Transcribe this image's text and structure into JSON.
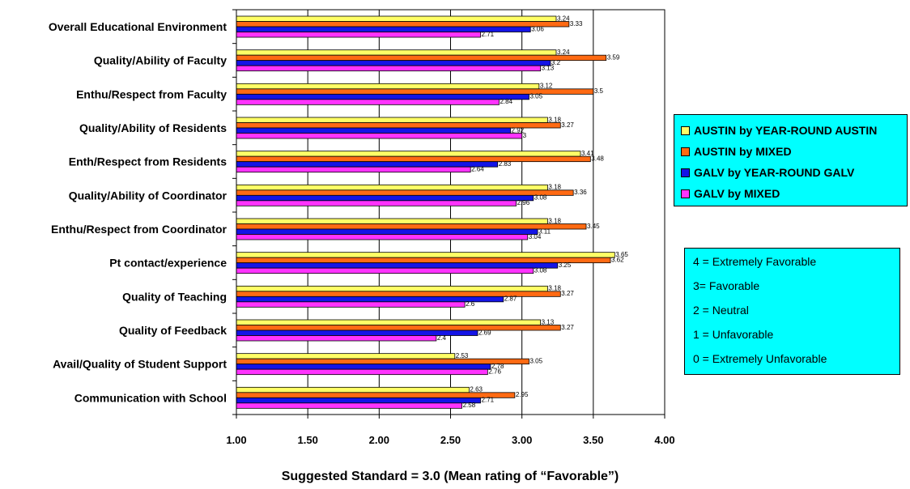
{
  "chart_data": {
    "type": "bar",
    "orientation": "horizontal",
    "categories": [
      "Overall Educational Environment",
      "Quality/Ability of Faculty",
      "Enthu/Respect from Faculty",
      "Quality/Ability of Residents",
      "Enth/Respect from Residents",
      "Quality/Ability of Coordinator",
      "Enthu/Respect from Coordinator",
      "Pt contact/experience",
      "Quality of Teaching",
      "Quality of Feedback",
      "Avail/Quality of Student Support",
      "Communication with School"
    ],
    "series": [
      {
        "name": "AUSTIN by YEAR-ROUND AUSTIN",
        "color": "#ffff66",
        "values": [
          3.24,
          3.24,
          3.12,
          3.18,
          3.41,
          3.18,
          3.18,
          3.65,
          3.18,
          3.13,
          2.53,
          2.63
        ]
      },
      {
        "name": "AUSTIN by MIXED",
        "color": "#ff6a13",
        "values": [
          3.33,
          3.59,
          3.5,
          3.27,
          3.48,
          3.36,
          3.45,
          3.62,
          3.27,
          3.27,
          3.05,
          2.95
        ]
      },
      {
        "name": "GALV by YEAR-ROUND GALV",
        "color": "#1414e6",
        "values": [
          3.06,
          3.2,
          3.05,
          2.92,
          2.83,
          3.08,
          3.11,
          3.25,
          2.87,
          2.69,
          2.78,
          2.71
        ]
      },
      {
        "name": "GALV by MIXED",
        "color": "#ff33ff",
        "values": [
          2.71,
          3.13,
          2.84,
          3,
          2.64,
          2.96,
          3.04,
          3.08,
          2.6,
          2.4,
          2.76,
          2.58
        ]
      }
    ],
    "value_labels": [
      [
        "3.24",
        "3.24",
        "3.12",
        "3.18",
        "3.41",
        "3.18",
        "3.18",
        "3.65",
        "3.18",
        "3.13",
        "2.53",
        "2.63"
      ],
      [
        "3.33",
        "3.59",
        "3.5",
        "3.27",
        "3.48",
        "3.36",
        "3.45",
        "3.62",
        "3.27",
        "3.27",
        "3.05",
        "2.95"
      ],
      [
        "3.06",
        "3.2",
        "3.05",
        "2.92",
        "2.83",
        "3.08",
        "3.11",
        "3.25",
        "2.87",
        "2.69",
        "2.78",
        "2.71"
      ],
      [
        "2.71",
        "3.13",
        "2.84",
        "3",
        "2.64",
        "2.96",
        "3.04",
        "3.08",
        "2.6",
        "2.4",
        "2.76",
        "2.58"
      ]
    ],
    "xlim": [
      1.0,
      4.0
    ],
    "xticks": [
      1.0,
      1.5,
      2.0,
      2.5,
      3.0,
      3.5,
      4.0
    ],
    "xtick_labels": [
      "1.00",
      "1.50",
      "2.00",
      "2.50",
      "3.00",
      "3.50",
      "4.00"
    ],
    "xlabel": "Suggested Standard = 3.0 (Mean rating of “Favorable”)",
    "ylabel": "",
    "title": "",
    "grid": "vertical",
    "legend_position": "right"
  },
  "scale_legend": [
    "4 = Extremely Favorable",
    "3= Favorable",
    "2 = Neutral",
    "1 = Unfavorable",
    "0 = Extremely Unfavorable"
  ]
}
